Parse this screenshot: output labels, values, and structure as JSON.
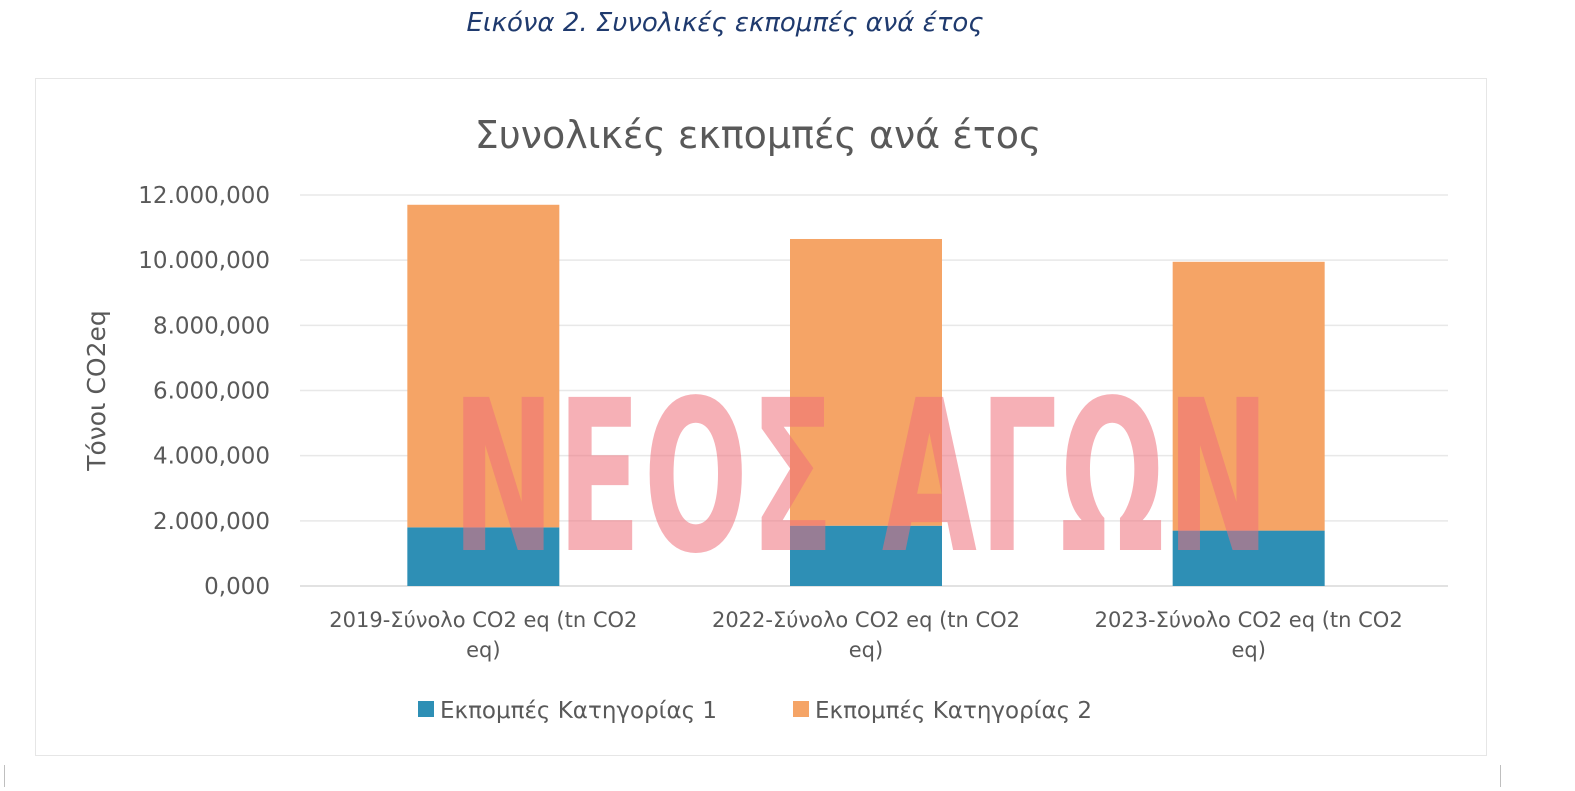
{
  "caption": "Εικόνα 2. Συνολικές εκπομπές ανά έτος",
  "watermark": "ΝΕΟΣ ΑΓΩΝ",
  "colors": {
    "series1": "#2e8fb5",
    "series2": "#f5a466",
    "watermark": "#ef6f7a",
    "grid": "#e8e8e8",
    "text": "#595959"
  },
  "chart_data": {
    "type": "bar",
    "stacked": true,
    "title": "Συνολικές εκπομπές ανά έτος",
    "ylabel": "Τόνοι CO2eq",
    "xlabel": "",
    "ylim": [
      0,
      12000000
    ],
    "yticks": [
      0,
      2000000,
      4000000,
      6000000,
      8000000,
      10000000,
      12000000
    ],
    "ytick_labels": [
      "0,000",
      "2.000,000",
      "4.000,000",
      "6.000,000",
      "8.000,000",
      "10.000,000",
      "12.000,000"
    ],
    "grid": true,
    "legend_position": "bottom",
    "categories": [
      [
        "2019-Σύνολο CO2 eq (tn CO2",
        "eq)"
      ],
      [
        "2022-Σύνολο CO2 eq (tn CO2",
        "eq)"
      ],
      [
        "2023-Σύνολο CO2 eq (tn CO2",
        "eq)"
      ]
    ],
    "series": [
      {
        "name": "Εκπομπές Κατηγορίας 1",
        "values": [
          1800000,
          1850000,
          1700000
        ]
      },
      {
        "name": "Εκπομπές Κατηγορίας 2",
        "values": [
          9900000,
          8800000,
          8250000
        ]
      }
    ]
  }
}
